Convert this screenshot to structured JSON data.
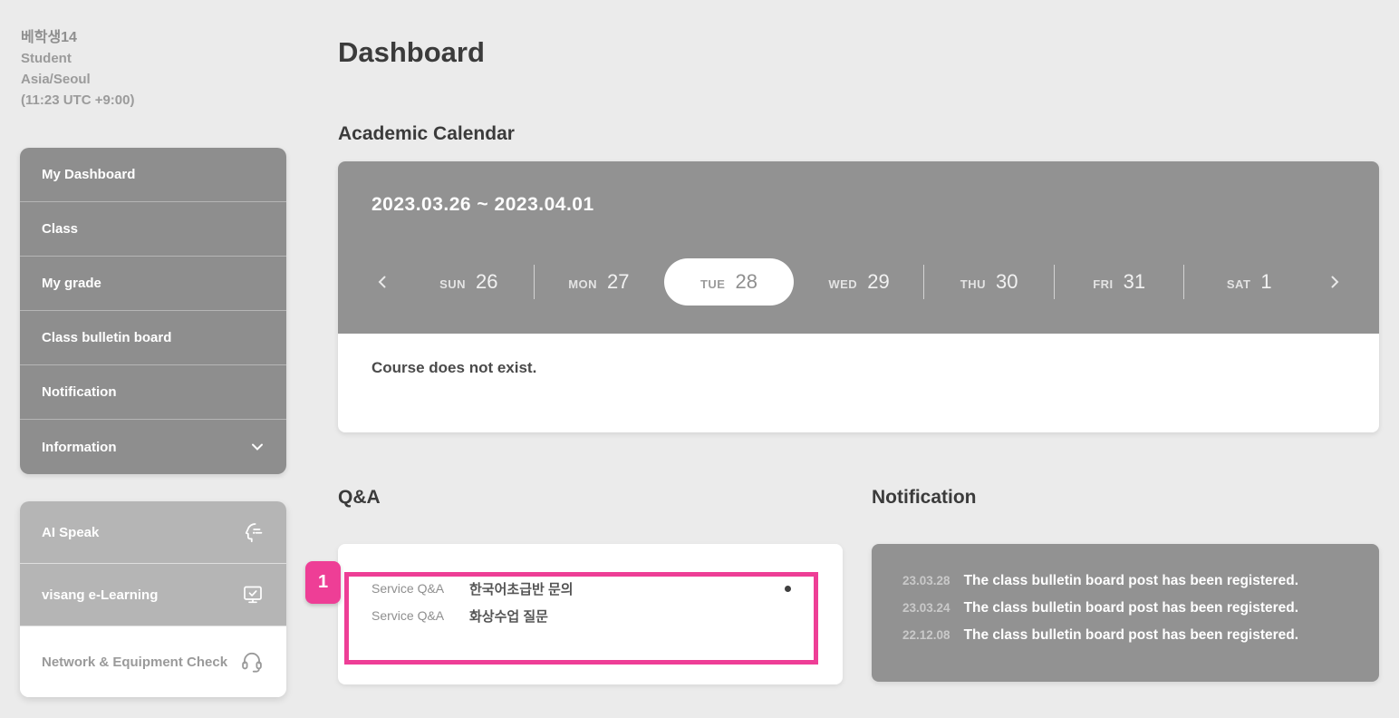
{
  "user": {
    "name": "베학생14",
    "role": "Student",
    "timezone": "Asia/Seoul",
    "time": "(11:23 UTC +9:00)"
  },
  "sidebar": {
    "main_items": [
      {
        "label": "My Dashboard"
      },
      {
        "label": "Class"
      },
      {
        "label": "My grade"
      },
      {
        "label": "Class bulletin board"
      },
      {
        "label": "Notification"
      },
      {
        "label": "Information",
        "has_chevron": true
      }
    ],
    "tool_items": [
      {
        "label": "AI Speak",
        "icon": "speaking-head-icon"
      },
      {
        "label": "visang e-Learning",
        "icon": "monitor-check-icon"
      },
      {
        "label": "Network & Equipment Check",
        "icon": "headset-icon",
        "light": true
      }
    ]
  },
  "page": {
    "title": "Dashboard"
  },
  "calendar": {
    "heading": "Academic Calendar",
    "range": "2023.03.26 ~ 2023.04.01",
    "days": [
      {
        "dow": "SUN",
        "date": "26"
      },
      {
        "dow": "MON",
        "date": "27"
      },
      {
        "dow": "TUE",
        "date": "28",
        "selected": true
      },
      {
        "dow": "WED",
        "date": "29"
      },
      {
        "dow": "THU",
        "date": "30"
      },
      {
        "dow": "FRI",
        "date": "31"
      },
      {
        "dow": "SAT",
        "date": "1"
      }
    ],
    "empty_message": "Course does not exist."
  },
  "qa": {
    "heading": "Q&A",
    "annotation_label": "1",
    "rows": [
      {
        "category": "Service Q&A",
        "title": "한국어초급반 문의",
        "unread_dot": true
      },
      {
        "category": "Service Q&A",
        "title": "화상수업 질문",
        "unread_dot": false
      }
    ]
  },
  "notification": {
    "heading": "Notification",
    "rows": [
      {
        "date": "23.03.28",
        "message": "The class bulletin board post has been registered."
      },
      {
        "date": "23.03.24",
        "message": "The class bulletin board post has been registered."
      },
      {
        "date": "22.12.08",
        "message": "The class bulletin board post has been registered."
      }
    ]
  },
  "icons": {
    "sidebar_expand": "chevron-down-icon",
    "calendar_prev": "chevron-left-icon",
    "calendar_next": "chevron-right-icon",
    "ai_speak": "speaking-head-icon",
    "e_learning": "monitor-check-icon",
    "equipment_check": "headset-icon",
    "qa_unread": "unread-dot"
  },
  "colors": {
    "accent_pink": "#ee3e96",
    "sidebar_gray": "#8e8e8e",
    "tool_gray": "#b5b5b5",
    "panel_gray": "#929292"
  }
}
